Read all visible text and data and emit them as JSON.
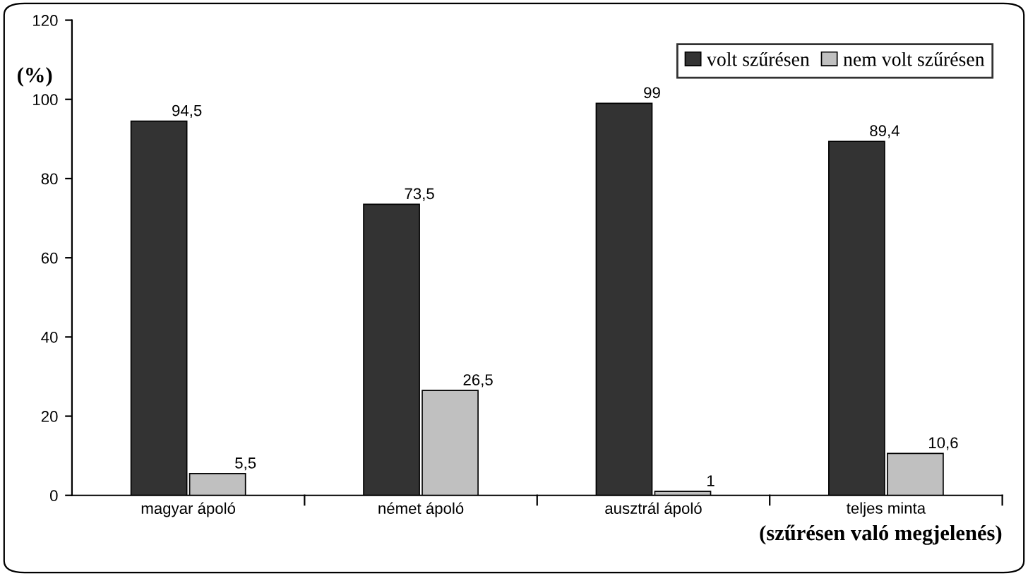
{
  "chart_data": {
    "type": "bar",
    "xlabel": "(szűrésen való megjelenés)",
    "ylabel": "(%)",
    "categories": [
      "magyar ápoló",
      "német ápoló",
      "ausztrál ápoló",
      "teljes minta"
    ],
    "series": [
      {
        "name": "volt szűrésen",
        "color": "#333333",
        "values": [
          94.5,
          73.5,
          99,
          89.4
        ],
        "value_labels": [
          "94,5",
          "73,5",
          "99",
          "89,4"
        ]
      },
      {
        "name": "nem volt szűrésen",
        "color": "#c0c0c0",
        "values": [
          5.5,
          26.5,
          1,
          10.6
        ],
        "value_labels": [
          "5,5",
          "26,5",
          "1",
          "10,6"
        ]
      }
    ],
    "ylim": [
      0,
      120
    ],
    "yticks": [
      0,
      20,
      40,
      60,
      80,
      100,
      120
    ],
    "grid": false,
    "legend": "top right"
  }
}
